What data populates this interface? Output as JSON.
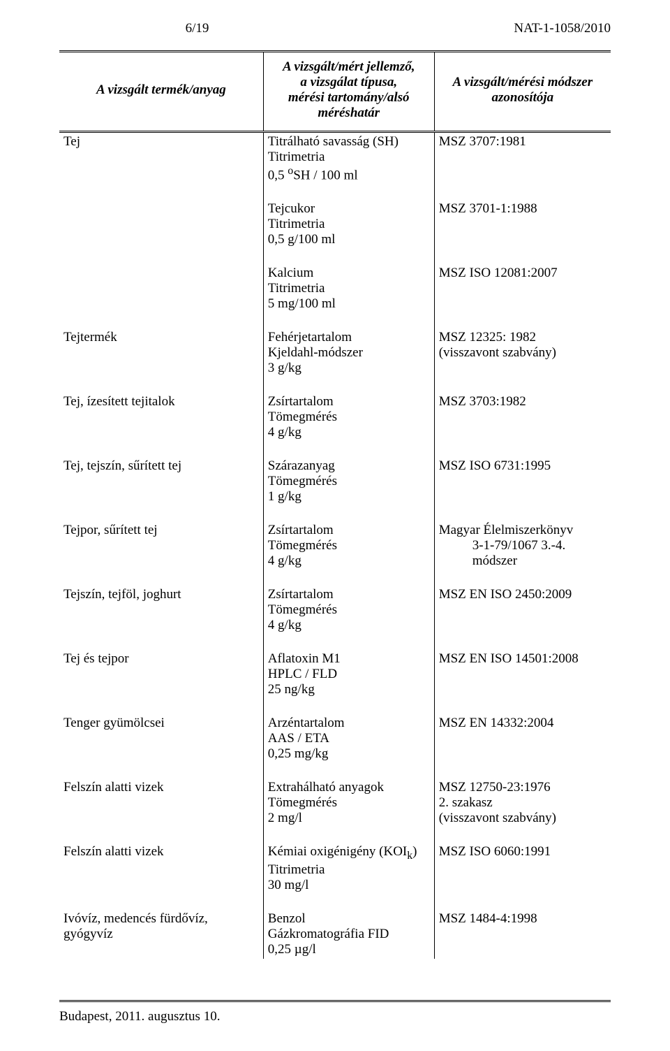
{
  "header": {
    "page_num": "6/19",
    "doc_code": "NAT-1-1058/2010"
  },
  "columns": {
    "c1": "A vizsgált termék/anyag",
    "c2_l1": "A vizsgált/mért jellemző,",
    "c2_l2": "a vizsgálat típusa,",
    "c2_l3": "mérési tartomány/alsó",
    "c2_l4": "méréshatár",
    "c3_l1": "A vizsgált/mérési módszer",
    "c3_l2": "azonosítója"
  },
  "rows": {
    "r1": {
      "product": "Tej",
      "m1": "Titrálható savasság (SH)",
      "m2": "Titrimetria",
      "m3": "0,5 ",
      "m3_sup": "o",
      "m3_after": "SH / 100 ml",
      "id": "MSZ 3707:1981"
    },
    "r2": {
      "m1": "Tejcukor",
      "m2": "Titrimetria",
      "m3": "0,5 g/100 ml",
      "id": "MSZ 3701-1:1988"
    },
    "r3": {
      "m1": "Kalcium",
      "m2": "Titrimetria",
      "m3": "5 mg/100 ml",
      "id": "MSZ ISO 12081:2007"
    },
    "r4": {
      "product": "Tejtermék",
      "m1": "Fehérjetartalom",
      "m2": "Kjeldahl-módszer",
      "m3": "3 g/kg",
      "id1": "MSZ 12325: 1982",
      "id2": "(visszavont szabvány)"
    },
    "r5": {
      "product": "Tej, ízesített tejitalok",
      "m1": "Zsírtartalom",
      "m2": "Tömegmérés",
      "m3": "4 g/kg",
      "id": "MSZ 3703:1982"
    },
    "r6": {
      "product": "Tej, tejszín, sűrített tej",
      "m1": "Szárazanyag",
      "m2": "Tömegmérés",
      "m3": "1 g/kg",
      "id": "MSZ ISO 6731:1995"
    },
    "r7": {
      "product": "Tejpor, sűrített tej",
      "m1": "Zsírtartalom",
      "m2": "Tömegmérés",
      "m3": "4 g/kg",
      "id1": "Magyar Élelmiszerkönyv",
      "id2": "3-1-79/1067 3.-4. módszer"
    },
    "r8": {
      "product": "Tejszín, tejföl, joghurt",
      "m1": "Zsírtartalom",
      "m2": "Tömegmérés",
      "m3": "4 g/kg",
      "id": "MSZ EN ISO 2450:2009"
    },
    "r9": {
      "product": "Tej és tejpor",
      "m1": "Aflatoxin M1",
      "m2": "HPLC / FLD",
      "m3": "25 ng/kg",
      "id": "MSZ EN ISO 14501:2008"
    },
    "r10": {
      "product": "Tenger gyümölcsei",
      "m1": "Arzéntartalom",
      "m2": "AAS / ETA",
      "m3": "0,25 mg/kg",
      "id": "MSZ EN 14332:2004"
    },
    "r11": {
      "product": "Felszín alatti vizek",
      "m1": "Extrahálható anyagok",
      "m2": "Tömegmérés",
      "m3": "2 mg/l",
      "id1": "MSZ 12750-23:1976",
      "id2": "2. szakasz",
      "id3": "(visszavont szabvány)"
    },
    "r12": {
      "product": "Felszín alatti vizek",
      "m1a": "Kémiai oxigénigény (KOI",
      "m1b": ")",
      "m1_sub": "k",
      "m2": "Titrimetria",
      "m3": "30 mg/l",
      "id": "MSZ ISO 6060:1991"
    },
    "r13": {
      "product": "Ivóvíz, medencés fürdővíz, gyógyvíz",
      "m1": "Benzol",
      "m2": "Gázkromatográfia FID",
      "m3": "0,25 µg/l",
      "id": "MSZ 1484-4:1998"
    }
  },
  "footer": "Budapest, 2011. augusztus 10."
}
